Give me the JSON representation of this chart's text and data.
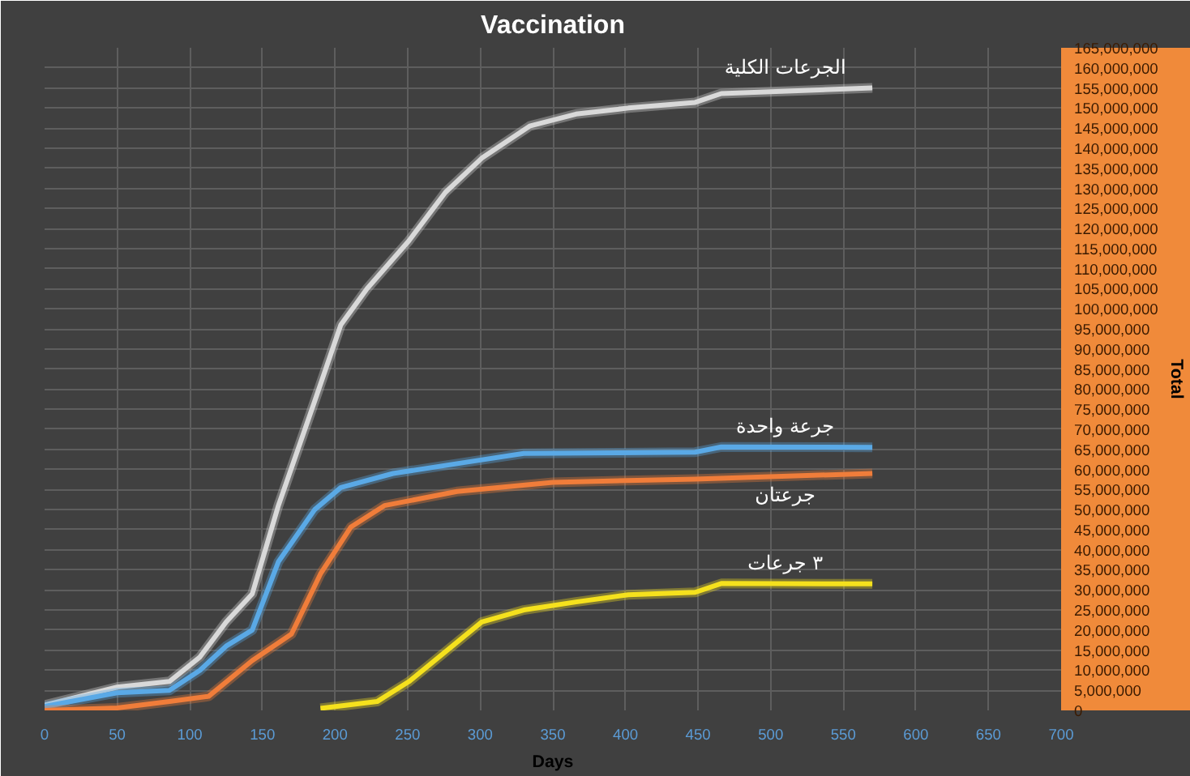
{
  "chart_data": {
    "type": "line",
    "title": "Vaccination",
    "xlabel": "Days",
    "ylabel": "Total",
    "xlim": [
      0,
      700
    ],
    "xticks": [
      0,
      50,
      100,
      150,
      200,
      250,
      300,
      350,
      400,
      450,
      500,
      550,
      600,
      650,
      700
    ],
    "ylim": [
      0,
      165000000
    ],
    "yticks": [
      {
        "value": 0,
        "label": "0"
      },
      {
        "value": 5000000,
        "label": "5,000,000"
      },
      {
        "value": 10000000,
        "label": "10,000,000"
      },
      {
        "value": 15000000,
        "label": "15,000,000"
      },
      {
        "value": 20000000,
        "label": "20,000,000"
      },
      {
        "value": 25000000,
        "label": "25,000,000"
      },
      {
        "value": 30000000,
        "label": "30,000,000"
      },
      {
        "value": 35000000,
        "label": "35,000,000"
      },
      {
        "value": 40000000,
        "label": "40,000,000"
      },
      {
        "value": 45000000,
        "label": "45,000,000"
      },
      {
        "value": 50000000,
        "label": "50,000,000"
      },
      {
        "value": 55000000,
        "label": "55,000,000"
      },
      {
        "value": 60000000,
        "label": "60,000,000"
      },
      {
        "value": 65000000,
        "label": "65,000,000"
      },
      {
        "value": 70000000,
        "label": "70,000,000"
      },
      {
        "value": 75000000,
        "label": "75,000,000"
      },
      {
        "value": 80000000,
        "label": "80,000,000"
      },
      {
        "value": 85000000,
        "label": "85,000,000"
      },
      {
        "value": 90000000,
        "label": "90,000,000"
      },
      {
        "value": 95000000,
        "label": "95,000,000"
      },
      {
        "value": 100000000,
        "label": "100,000,000"
      },
      {
        "value": 105000000,
        "label": "105,000,000"
      },
      {
        "value": 110000000,
        "label": "110,000,000"
      },
      {
        "value": 115000000,
        "label": "115,000,000"
      },
      {
        "value": 120000000,
        "label": "120,000,000"
      },
      {
        "value": 125000000,
        "label": "125,000,000"
      },
      {
        "value": 130000000,
        "label": "130,000,000"
      },
      {
        "value": 135000000,
        "label": "135,000,000"
      },
      {
        "value": 140000000,
        "label": "140,000,000"
      },
      {
        "value": 145000000,
        "label": "145,000,000"
      },
      {
        "value": 150000000,
        "label": "150,000,000"
      },
      {
        "value": 155000000,
        "label": "155,000,000"
      },
      {
        "value": 160000000,
        "label": "160,000,000"
      },
      {
        "value": 165000000,
        "label": "165,000,000"
      }
    ],
    "grid": true,
    "series": [
      {
        "name": "الجرعات الكلية",
        "color": "#d9d9d9",
        "x": [
          0,
          50,
          86,
          107,
          125,
          143,
          161,
          186,
          204,
          222,
          251,
          276,
          301,
          334,
          366,
          402,
          448,
          466,
          570
        ],
        "values": [
          1300000,
          5800000,
          7200000,
          13300000,
          22000000,
          29000000,
          51000000,
          77000000,
          96000000,
          105000000,
          117000000,
          129000000,
          137500000,
          145500000,
          148500000,
          150000000,
          151400000,
          153600000,
          155000000
        ]
      },
      {
        "name": "جرعة واحدة",
        "color": "#5aa9e6",
        "x": [
          0,
          50,
          86,
          107,
          125,
          143,
          161,
          186,
          204,
          240,
          294,
          330,
          448,
          466,
          570
        ],
        "values": [
          1000000,
          4400000,
          5000000,
          10000000,
          16000000,
          20000000,
          37000000,
          50000000,
          55500000,
          59000000,
          62000000,
          64000000,
          64300000,
          65600000,
          65500000
        ]
      },
      {
        "name": "جرعتان",
        "color": "#f07d3a",
        "x": [
          0,
          50,
          86,
          113,
          143,
          170,
          190,
          211,
          234,
          284,
          350,
          448,
          570
        ],
        "values": [
          0,
          600000,
          2200000,
          3500000,
          12400000,
          19000000,
          34000000,
          45700000,
          51000000,
          54500000,
          56800000,
          57600000,
          59000000
        ]
      },
      {
        "name": "٣ جرعات",
        "color": "#f5e11d",
        "x": [
          190,
          229,
          251,
          276,
          301,
          330,
          366,
          402,
          448,
          466,
          570
        ],
        "values": [
          500000,
          2200000,
          7200000,
          14600000,
          22000000,
          25000000,
          27000000,
          28800000,
          29400000,
          31600000,
          31500000
        ]
      }
    ]
  }
}
